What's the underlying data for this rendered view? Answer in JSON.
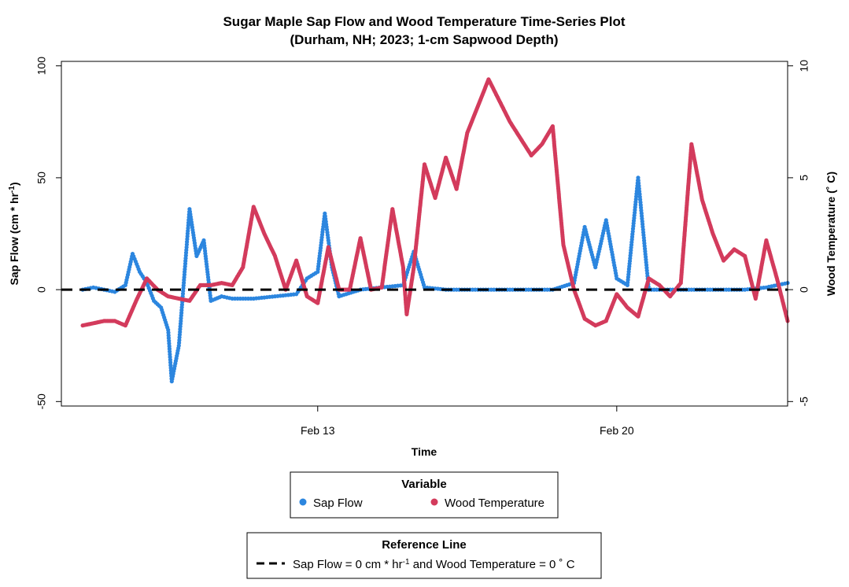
{
  "chart_data": {
    "type": "scatter",
    "title_line1": "Sugar Maple Sap Flow and Wood Temperature Time-Series Plot",
    "title_line2": "(Durham, NH; 2023; 1-cm Sapwood Depth)",
    "xlabel": "Time",
    "ylabel_left_main": "Sap Flow (cm * hr",
    "ylabel_left_sup": "-1",
    "ylabel_left_end": ")",
    "ylabel_right": "Wood Temperature (˚ C)",
    "xlim": [
      "2023-02-07",
      "2023-02-24"
    ],
    "x_ticks": [
      {
        "date": "2023-02-13",
        "label": "Feb 13"
      },
      {
        "date": "2023-02-20",
        "label": "Feb 20"
      }
    ],
    "ylim_left": [
      -52,
      102
    ],
    "ylim_right": [
      -5.2,
      10.2
    ],
    "y_ticks_left": [
      -50,
      0,
      50,
      100
    ],
    "y_ticks_right": [
      -5,
      0,
      5,
      10
    ],
    "grid": false,
    "reference_line": {
      "value": 0,
      "style": "dashed",
      "color": "#000000"
    },
    "legend_variable": {
      "title": "Variable",
      "entries": [
        {
          "label": "Sap Flow",
          "color": "#2C86DF"
        },
        {
          "label": "Wood Temperature",
          "color": "#D33B5C"
        }
      ]
    },
    "legend_reference": {
      "title": "Reference Line",
      "label_part1": "Sap Flow = 0 cm * hr",
      "label_sup": "-1",
      "label_part2": " and Wood Temperature = 0 ˚ C"
    },
    "series": [
      {
        "name": "Wood Temperature",
        "axis": "right",
        "color": "#D33B5C",
        "points": [
          [
            "2023-02-07 12:00",
            -1.6
          ],
          [
            "2023-02-07 18:00",
            -1.5
          ],
          [
            "2023-02-08 00:00",
            -1.4
          ],
          [
            "2023-02-08 06:00",
            -1.4
          ],
          [
            "2023-02-08 12:00",
            -1.6
          ],
          [
            "2023-02-08 18:00",
            -0.5
          ],
          [
            "2023-02-09 00:00",
            0.5
          ],
          [
            "2023-02-09 06:00",
            0.0
          ],
          [
            "2023-02-09 12:00",
            -0.3
          ],
          [
            "2023-02-09 18:00",
            -0.4
          ],
          [
            "2023-02-10 00:00",
            -0.5
          ],
          [
            "2023-02-10 06:00",
            0.2
          ],
          [
            "2023-02-10 12:00",
            0.2
          ],
          [
            "2023-02-10 18:00",
            0.3
          ],
          [
            "2023-02-11 00:00",
            0.2
          ],
          [
            "2023-02-11 06:00",
            1.0
          ],
          [
            "2023-02-11 12:00",
            3.7
          ],
          [
            "2023-02-11 18:00",
            2.5
          ],
          [
            "2023-02-12 00:00",
            1.5
          ],
          [
            "2023-02-12 06:00",
            0.0
          ],
          [
            "2023-02-12 12:00",
            1.3
          ],
          [
            "2023-02-12 18:00",
            -0.3
          ],
          [
            "2023-02-13 00:00",
            -0.6
          ],
          [
            "2023-02-13 06:00",
            1.9
          ],
          [
            "2023-02-13 12:00",
            0.0
          ],
          [
            "2023-02-13 18:00",
            0.0
          ],
          [
            "2023-02-14 00:00",
            2.3
          ],
          [
            "2023-02-14 06:00",
            0.0
          ],
          [
            "2023-02-14 12:00",
            0.1
          ],
          [
            "2023-02-14 18:00",
            3.6
          ],
          [
            "2023-02-15 00:00",
            1.0
          ],
          [
            "2023-02-15 02:00",
            -1.1
          ],
          [
            "2023-02-15 06:00",
            1.0
          ],
          [
            "2023-02-15 12:00",
            5.6
          ],
          [
            "2023-02-15 18:00",
            4.1
          ],
          [
            "2023-02-16 00:00",
            5.9
          ],
          [
            "2023-02-16 06:00",
            4.5
          ],
          [
            "2023-02-16 12:00",
            7.0
          ],
          [
            "2023-02-17 00:00",
            9.4
          ],
          [
            "2023-02-17 12:00",
            7.5
          ],
          [
            "2023-02-18 00:00",
            6.0
          ],
          [
            "2023-02-18 06:00",
            6.5
          ],
          [
            "2023-02-18 12:00",
            7.3
          ],
          [
            "2023-02-18 18:00",
            2.0
          ],
          [
            "2023-02-19 00:00",
            0.0
          ],
          [
            "2023-02-19 06:00",
            -1.3
          ],
          [
            "2023-02-19 12:00",
            -1.6
          ],
          [
            "2023-02-19 18:00",
            -1.4
          ],
          [
            "2023-02-20 00:00",
            -0.2
          ],
          [
            "2023-02-20 06:00",
            -0.8
          ],
          [
            "2023-02-20 12:00",
            -1.2
          ],
          [
            "2023-02-20 18:00",
            0.5
          ],
          [
            "2023-02-21 00:00",
            0.2
          ],
          [
            "2023-02-21 06:00",
            -0.3
          ],
          [
            "2023-02-21 12:00",
            0.3
          ],
          [
            "2023-02-21 18:00",
            6.5
          ],
          [
            "2023-02-22 00:00",
            4.0
          ],
          [
            "2023-02-22 06:00",
            2.5
          ],
          [
            "2023-02-22 12:00",
            1.3
          ],
          [
            "2023-02-22 18:00",
            1.8
          ],
          [
            "2023-02-23 00:00",
            1.5
          ],
          [
            "2023-02-23 06:00",
            -0.4
          ],
          [
            "2023-02-23 12:00",
            2.2
          ],
          [
            "2023-02-23 18:00",
            0.5
          ],
          [
            "2023-02-24 00:00",
            -1.4
          ]
        ]
      },
      {
        "name": "Sap Flow",
        "axis": "left",
        "color": "#2C86DF",
        "points": [
          [
            "2023-02-07 12:00",
            0
          ],
          [
            "2023-02-07 18:00",
            1
          ],
          [
            "2023-02-08 00:00",
            0
          ],
          [
            "2023-02-08 06:00",
            -1
          ],
          [
            "2023-02-08 12:00",
            2
          ],
          [
            "2023-02-08 16:00",
            16
          ],
          [
            "2023-02-08 20:00",
            8
          ],
          [
            "2023-02-09 00:00",
            3
          ],
          [
            "2023-02-09 04:00",
            -5
          ],
          [
            "2023-02-09 08:00",
            -8
          ],
          [
            "2023-02-09 12:00",
            -18
          ],
          [
            "2023-02-09 14:00",
            -41
          ],
          [
            "2023-02-09 18:00",
            -25
          ],
          [
            "2023-02-10 00:00",
            36
          ],
          [
            "2023-02-10 04:00",
            15
          ],
          [
            "2023-02-10 08:00",
            22
          ],
          [
            "2023-02-10 12:00",
            -5
          ],
          [
            "2023-02-10 18:00",
            -3
          ],
          [
            "2023-02-11 00:00",
            -4
          ],
          [
            "2023-02-11 12:00",
            -4
          ],
          [
            "2023-02-12 00:00",
            -3
          ],
          [
            "2023-02-12 12:00",
            -2
          ],
          [
            "2023-02-12 18:00",
            5
          ],
          [
            "2023-02-13 00:00",
            8
          ],
          [
            "2023-02-13 04:00",
            34
          ],
          [
            "2023-02-13 08:00",
            10
          ],
          [
            "2023-02-13 12:00",
            -3
          ],
          [
            "2023-02-14 00:00",
            0
          ],
          [
            "2023-02-14 12:00",
            1
          ],
          [
            "2023-02-15 00:00",
            2
          ],
          [
            "2023-02-15 06:00",
            17
          ],
          [
            "2023-02-15 12:00",
            1
          ],
          [
            "2023-02-16 00:00",
            0
          ],
          [
            "2023-02-17 00:00",
            0
          ],
          [
            "2023-02-18 00:00",
            0
          ],
          [
            "2023-02-18 12:00",
            0
          ],
          [
            "2023-02-19 00:00",
            3
          ],
          [
            "2023-02-19 06:00",
            28
          ],
          [
            "2023-02-19 12:00",
            10
          ],
          [
            "2023-02-19 18:00",
            31
          ],
          [
            "2023-02-20 00:00",
            5
          ],
          [
            "2023-02-20 06:00",
            2
          ],
          [
            "2023-02-20 12:00",
            50
          ],
          [
            "2023-02-20 18:00",
            0
          ],
          [
            "2023-02-21 06:00",
            0
          ],
          [
            "2023-02-22 00:00",
            0
          ],
          [
            "2023-02-23 00:00",
            0
          ],
          [
            "2023-02-23 12:00",
            1
          ],
          [
            "2023-02-24 00:00",
            3
          ]
        ]
      }
    ]
  }
}
